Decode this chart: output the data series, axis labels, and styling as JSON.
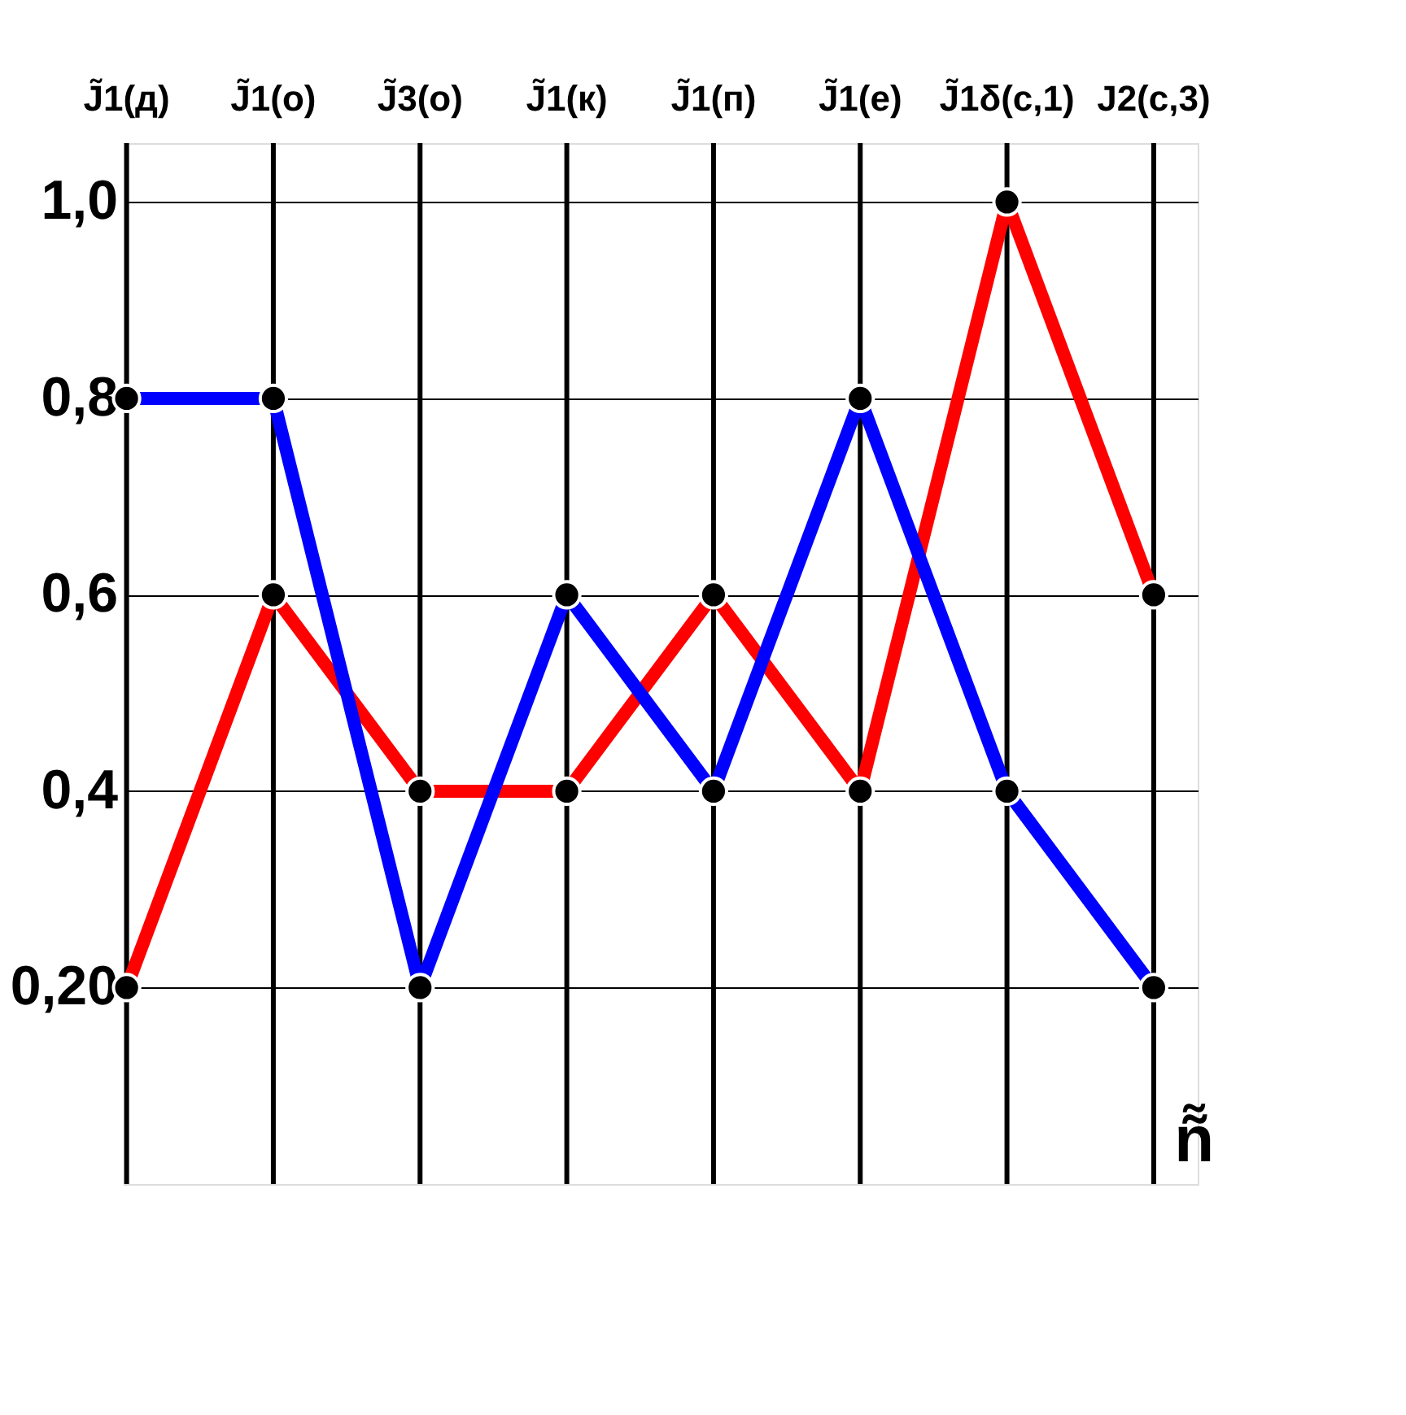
{
  "chart_data": {
    "type": "line",
    "categories": [
      "J̃1(д)",
      "J̃1(о)",
      "J̃3(о)",
      "J̃1(к)",
      "J̃1(п)",
      "J̃1(е)",
      "J̃1δ(с,1)",
      "J2(с,3)"
    ],
    "series": [
      {
        "color": "#ff0000",
        "values": [
          0.2,
          0.6,
          0.4,
          0.4,
          0.6,
          0.4,
          1.0,
          0.6
        ]
      },
      {
        "color": "#0000ff",
        "values": [
          0.8,
          0.8,
          0.2,
          0.6,
          0.4,
          0.8,
          0.4,
          0.2
        ]
      }
    ],
    "xlabel": "ñ̃",
    "ylim": [
      0,
      1.06
    ],
    "yticks": [
      {
        "value": 0.2,
        "label": "0,20"
      },
      {
        "value": 0.4,
        "label": "0,4"
      },
      {
        "value": 0.6,
        "label": "0,6"
      },
      {
        "value": 0.8,
        "label": "0,8"
      },
      {
        "value": 1.0,
        "label": "1,0"
      }
    ],
    "grid": true,
    "legend": false,
    "marker": "circle",
    "line_style": "solid"
  }
}
